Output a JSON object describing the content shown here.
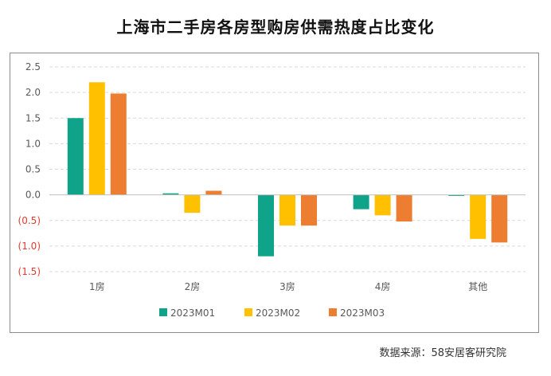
{
  "chart_data": {
    "type": "bar",
    "title": "上海市二手房各房型购房供需热度占比变化",
    "categories": [
      "1房",
      "2房",
      "3房",
      "4房",
      "其他"
    ],
    "series": [
      {
        "name": "2023M01",
        "values": [
          1.5,
          0.03,
          -1.2,
          -0.28,
          -0.02
        ],
        "color": "#0fa38a"
      },
      {
        "name": "2023M02",
        "values": [
          2.2,
          -0.35,
          -0.6,
          -0.4,
          -0.86
        ],
        "color": "#ffc000"
      },
      {
        "name": "2023M03",
        "values": [
          1.98,
          0.08,
          -0.6,
          -0.52,
          -0.93
        ],
        "color": "#ed7d31"
      }
    ],
    "ylim": [
      -1.5,
      2.5
    ],
    "yticks": [
      "2.5",
      "2.0",
      "1.5",
      "1.0",
      "0.5",
      "0.0",
      "(0.5)",
      "(1.0)",
      "(1.5)"
    ],
    "ytick_values": [
      2.5,
      2.0,
      1.5,
      1.0,
      0.5,
      0.0,
      -0.5,
      -1.0,
      -1.5
    ],
    "negative_tick_color": "#e03c31",
    "grid": true,
    "legend_position": "bottom"
  },
  "source": "数据来源：58安居客研究院"
}
